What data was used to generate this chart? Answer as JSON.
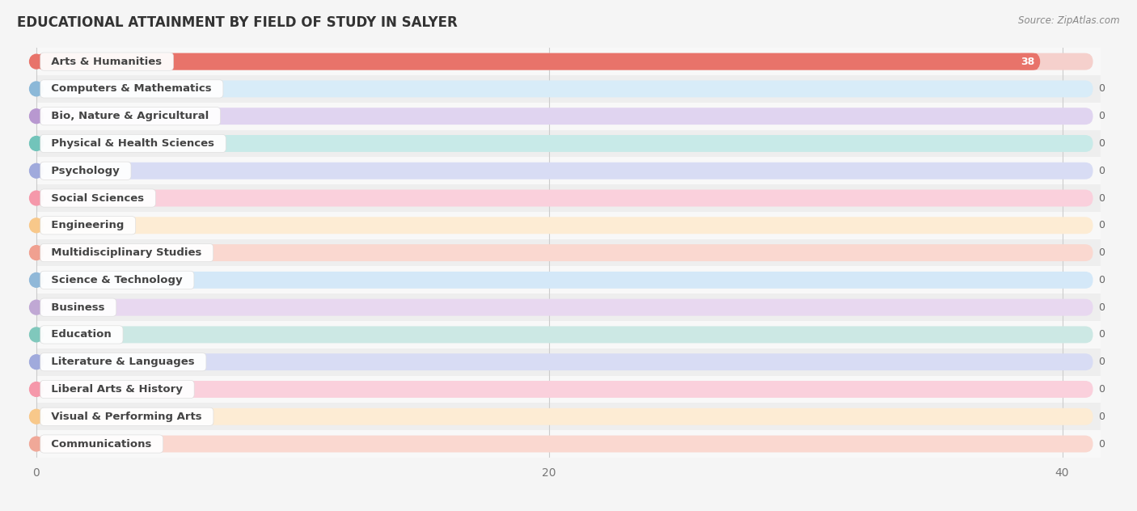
{
  "title": "EDUCATIONAL ATTAINMENT BY FIELD OF STUDY IN SALYER",
  "source": "Source: ZipAtlas.com",
  "categories": [
    "Arts & Humanities",
    "Computers & Mathematics",
    "Bio, Nature & Agricultural",
    "Physical & Health Sciences",
    "Psychology",
    "Social Sciences",
    "Engineering",
    "Multidisciplinary Studies",
    "Science & Technology",
    "Business",
    "Education",
    "Literature & Languages",
    "Liberal Arts & History",
    "Visual & Performing Arts",
    "Communications"
  ],
  "values": [
    38,
    0,
    0,
    0,
    0,
    0,
    0,
    0,
    0,
    0,
    0,
    0,
    0,
    0,
    0
  ],
  "bar_colors": [
    "#E8736A",
    "#8BB8D8",
    "#B898D0",
    "#72C4BA",
    "#A0AADC",
    "#F598AA",
    "#F8C88A",
    "#F0A090",
    "#90B8D8",
    "#C0A8D4",
    "#80C8BC",
    "#A0AADC",
    "#F598AA",
    "#F8C88A",
    "#F0A898"
  ],
  "bar_bg_colors": [
    "#F5D0CC",
    "#D8ECF8",
    "#E0D4F0",
    "#C8EAE8",
    "#D8DCF4",
    "#FAD0DC",
    "#FDECD4",
    "#FAD8D0",
    "#D4E8F8",
    "#E8D8F0",
    "#CCE8E4",
    "#D8DCF4",
    "#FAD0DC",
    "#FDECD4",
    "#FAD8D0"
  ],
  "xlim": [
    0,
    41.5
  ],
  "xticks": [
    0,
    20,
    40
  ],
  "background_color": "#f5f5f5",
  "title_fontsize": 12,
  "bar_height": 0.62,
  "label_fontsize": 9.5,
  "value_fontsize": 9
}
